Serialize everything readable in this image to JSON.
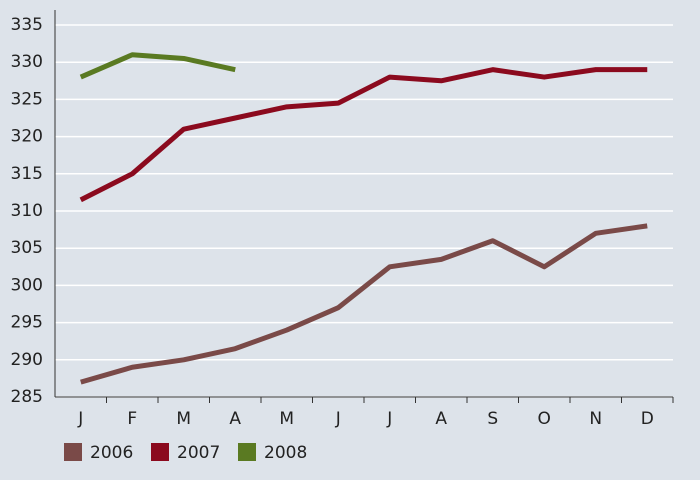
{
  "chart_data": {
    "type": "line",
    "categories": [
      "J",
      "F",
      "M",
      "A",
      "M",
      "J",
      "J",
      "A",
      "S",
      "O",
      "N",
      "D"
    ],
    "series": [
      {
        "name": "2006",
        "color": "#7a4a48",
        "values": [
          287,
          289,
          290,
          291.5,
          294,
          297,
          302.5,
          303.5,
          306,
          302.5,
          307,
          308
        ]
      },
      {
        "name": "2007",
        "color": "#8b0a1e",
        "values": [
          311.5,
          315,
          321,
          322.5,
          324,
          324.5,
          328,
          327.5,
          329,
          328,
          329,
          329
        ]
      },
      {
        "name": "2008",
        "color": "#5a7a22",
        "values": [
          328,
          331,
          330.5,
          329,
          null,
          null,
          null,
          null,
          null,
          null,
          null,
          null
        ]
      }
    ],
    "ylim": [
      285,
      335
    ],
    "yticks": [
      285,
      290,
      295,
      300,
      305,
      310,
      315,
      320,
      325,
      330,
      335
    ],
    "grid": true,
    "legend": "bottom"
  }
}
